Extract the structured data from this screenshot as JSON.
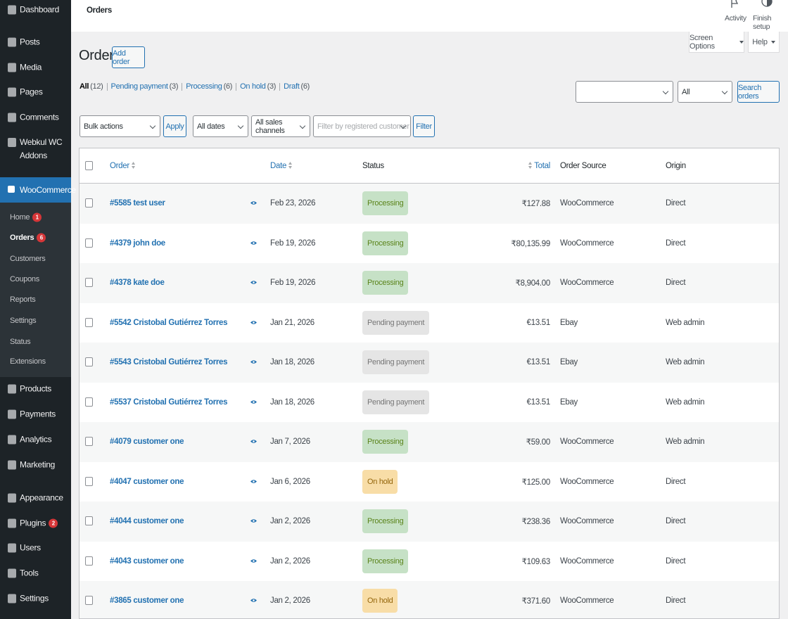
{
  "topbar": {
    "title": "Orders",
    "activity": "Activity",
    "finish_setup": "Finish setup"
  },
  "sidebar": {
    "menu": [
      {
        "label": "Dashboard"
      },
      {
        "label": "Posts"
      },
      {
        "label": "Media"
      },
      {
        "label": "Pages"
      },
      {
        "label": "Comments"
      },
      {
        "label": "Webkul WC Addons"
      },
      {
        "label": "WooCommerce",
        "active": true
      }
    ],
    "submenu": [
      {
        "label": "Home",
        "badge": 1
      },
      {
        "label": "Orders",
        "badge": 6,
        "current": true
      },
      {
        "label": "Customers"
      },
      {
        "label": "Coupons"
      },
      {
        "label": "Reports"
      },
      {
        "label": "Settings"
      },
      {
        "label": "Status"
      },
      {
        "label": "Extensions"
      }
    ],
    "menu_lower": [
      {
        "label": "Products"
      },
      {
        "label": "Payments"
      },
      {
        "label": "Analytics"
      },
      {
        "label": "Marketing"
      },
      {
        "label": "Appearance"
      },
      {
        "label": "Plugins",
        "badge": 2
      },
      {
        "label": "Users"
      },
      {
        "label": "Tools"
      },
      {
        "label": "Settings"
      }
    ]
  },
  "screen_options": "Screen Options",
  "help": "Help",
  "heading": "Orders",
  "add_order": "Add order",
  "status_filters": [
    {
      "label": "All",
      "count": "(12)",
      "current": true
    },
    {
      "label": "Pending payment",
      "count": "(3)"
    },
    {
      "label": "Processing",
      "count": "(6)"
    },
    {
      "label": "On hold",
      "count": "(3)"
    },
    {
      "label": "Draft",
      "count": "(6)"
    }
  ],
  "search": {
    "select": "All",
    "button": "Search orders"
  },
  "toolbar": {
    "bulk_actions": "Bulk actions",
    "apply": "Apply",
    "dates": "All dates",
    "channels": "All sales channels",
    "customer_placeholder": "Filter by registered customer",
    "filter": "Filter"
  },
  "table": {
    "columns": [
      "Order",
      "Date",
      "Status",
      "Total",
      "Order Source",
      "Origin"
    ],
    "rows": [
      {
        "order": "#5585 test user",
        "date": "Feb 23, 2026",
        "status": "Processing",
        "status_color": "#c6e1c6",
        "total": "₹127.88",
        "source": "WooCommerce",
        "origin": "Direct"
      },
      {
        "order": "#4379 john doe",
        "date": "Feb 19, 2026",
        "status": "Processing",
        "status_color": "#c6e1c6",
        "total": "₹80,135.99",
        "source": "WooCommerce",
        "origin": "Direct"
      },
      {
        "order": "#4378 kate doe",
        "date": "Feb 19, 2026",
        "status": "Processing",
        "status_color": "#c6e1c6",
        "total": "₹8,904.00",
        "source": "WooCommerce",
        "origin": "Direct"
      },
      {
        "order": "#5542 Cristobal Gutiérrez Torres",
        "date": "Jan 21, 2026",
        "status": "Pending payment",
        "status_color": "#e5e5e5",
        "total": "€13.51",
        "source": "Ebay",
        "origin": "Web admin"
      },
      {
        "order": "#5543 Cristobal Gutiérrez Torres",
        "date": "Jan 18, 2026",
        "status": "Pending payment",
        "status_color": "#e5e5e5",
        "total": "€13.51",
        "source": "Ebay",
        "origin": "Web admin"
      },
      {
        "order": "#5537 Cristobal Gutiérrez Torres",
        "date": "Jan 18, 2026",
        "status": "Pending payment",
        "status_color": "#e5e5e5",
        "total": "€13.51",
        "source": "Ebay",
        "origin": "Web admin"
      },
      {
        "order": "#4079 customer one",
        "date": "Jan 7, 2026",
        "status": "Processing",
        "status_color": "#c6e1c6",
        "total": "₹59.00",
        "source": "WooCommerce",
        "origin": "Web admin"
      },
      {
        "order": "#4047 customer one",
        "date": "Jan 6, 2026",
        "status": "On hold",
        "status_color": "#f8dda7",
        "total": "₹125.00",
        "source": "WooCommerce",
        "origin": "Direct"
      },
      {
        "order": "#4044 customer one",
        "date": "Jan 2, 2026",
        "status": "Processing",
        "status_color": "#c6e1c6",
        "total": "₹238.36",
        "source": "WooCommerce",
        "origin": "Direct"
      },
      {
        "order": "#4043 customer one",
        "date": "Jan 2, 2026",
        "status": "Processing",
        "status_color": "#c6e1c6",
        "total": "₹109.63",
        "source": "WooCommerce",
        "origin": "Direct"
      },
      {
        "order": "#3865 customer one",
        "date": "Jan 2, 2026",
        "status": "On hold",
        "status_color": "#f8dda7",
        "total": "₹371.60",
        "source": "WooCommerce",
        "origin": "Direct"
      }
    ]
  }
}
